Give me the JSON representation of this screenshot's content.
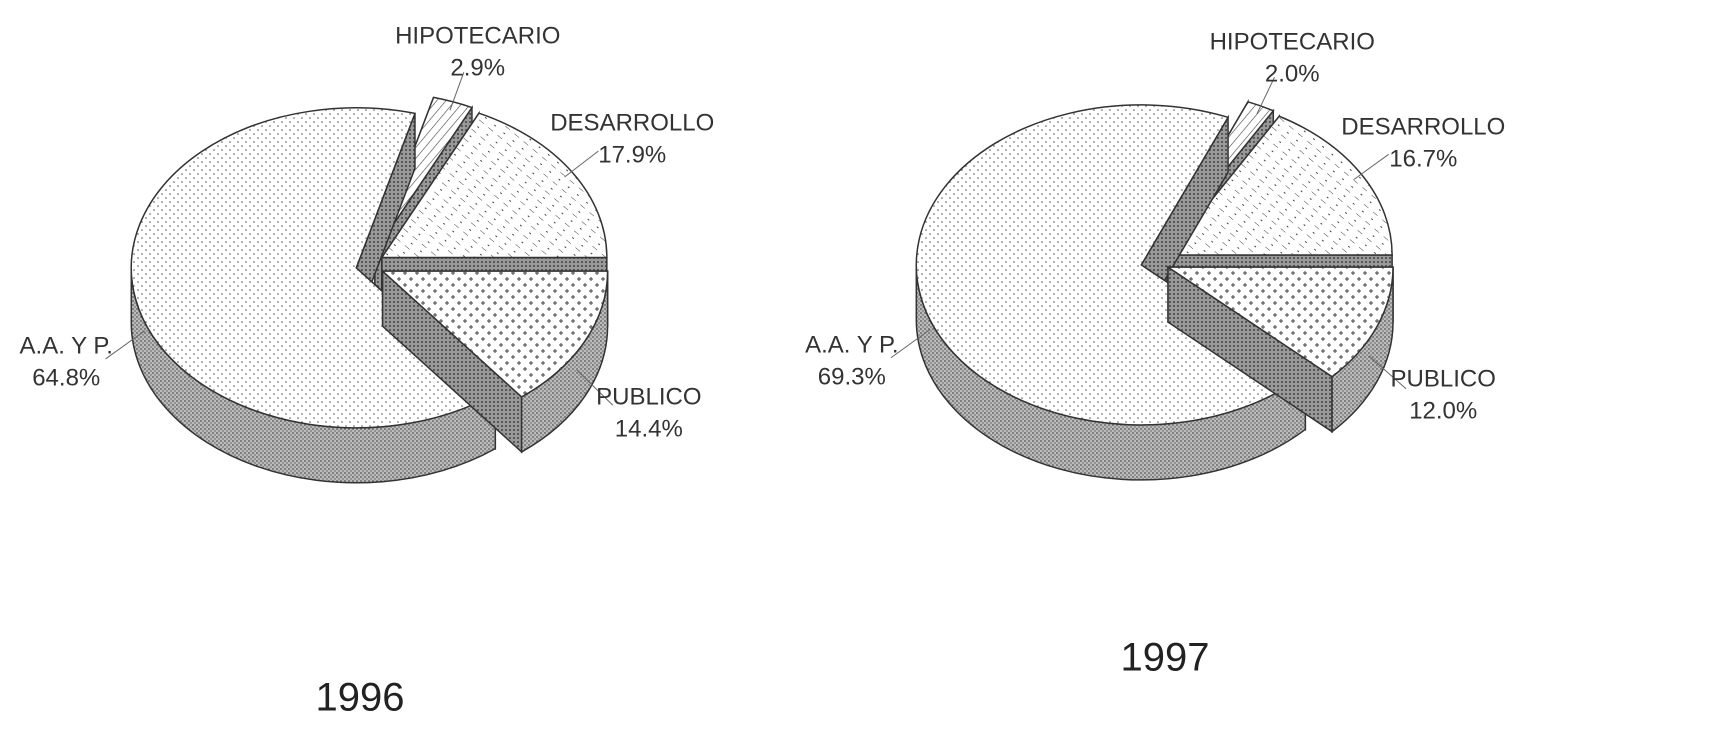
{
  "chart_data": [
    {
      "type": "pie",
      "title": "1996",
      "categories": [
        "PUBLICO",
        "A.A. Y P.",
        "HIPOTECARIO",
        "DESARROLLO"
      ],
      "values": [
        14.4,
        64.8,
        2.9,
        17.9
      ],
      "value_labels": [
        "14.4%",
        "64.8%",
        "2.9%",
        "17.9%"
      ]
    },
    {
      "type": "pie",
      "title": "1997",
      "categories": [
        "PUBLICO",
        "A.A. Y P.",
        "HIPOTECARIO",
        "DESARROLLO"
      ],
      "values": [
        12.0,
        69.3,
        2.0,
        16.7
      ],
      "value_labels": [
        "12.0%",
        "69.3%",
        "2.0%",
        "16.7%"
      ]
    }
  ]
}
